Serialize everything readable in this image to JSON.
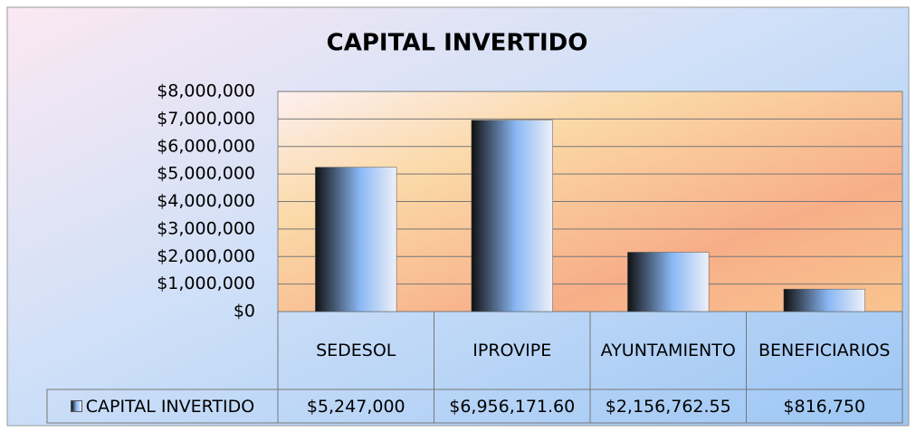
{
  "chart_data": {
    "type": "bar",
    "title": "CAPITAL INVERTIDO",
    "categories": [
      "SEDESOL",
      "IPROVIPE",
      "AYUNTAMIENTO",
      "BENEFICIARIOS"
    ],
    "series": [
      {
        "name": "CAPITAL INVERTIDO",
        "color": "#8ab8f5",
        "values": [
          5247000,
          6956171.6,
          2156762.55,
          816750
        ],
        "value_labels": [
          "$5,247,000",
          "$6,956,171.60",
          "$2,156,762.55",
          "$816,750"
        ]
      }
    ],
    "ylim": [
      0,
      8000000
    ],
    "yticks": [
      {
        "value": 0,
        "label": "$0"
      },
      {
        "value": 1000000,
        "label": "$1,000,000"
      },
      {
        "value": 2000000,
        "label": "$2,000,000"
      },
      {
        "value": 3000000,
        "label": "$3,000,000"
      },
      {
        "value": 4000000,
        "label": "$4,000,000"
      },
      {
        "value": 5000000,
        "label": "$5,000,000"
      },
      {
        "value": 6000000,
        "label": "$6,000,000"
      },
      {
        "value": 7000000,
        "label": "$7,000,000"
      },
      {
        "value": 8000000,
        "label": "$8,000,000"
      }
    ],
    "grid": true,
    "data_table": true
  }
}
